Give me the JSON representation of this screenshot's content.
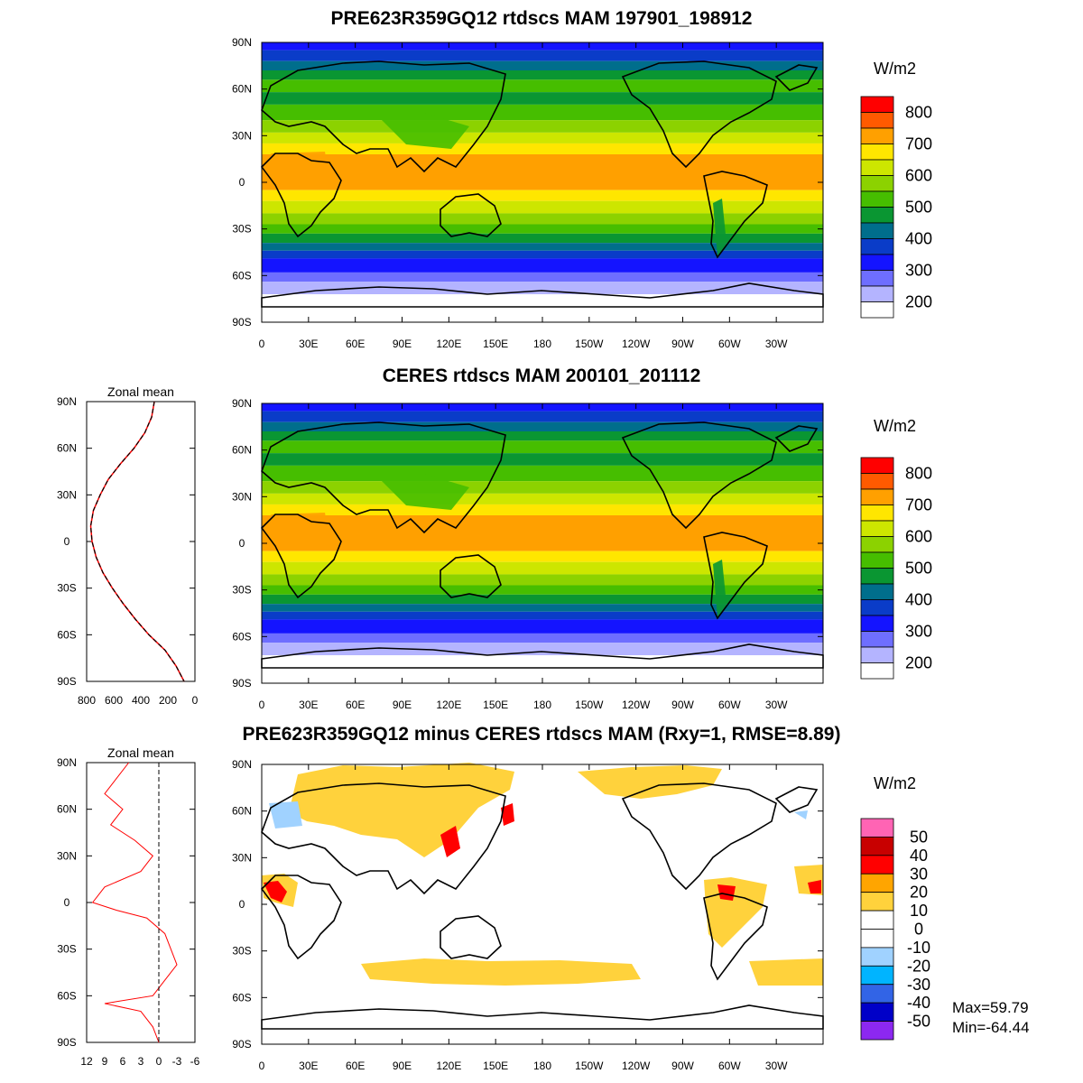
{
  "panels": [
    {
      "title": "PRE623R359GQ12 rtdscs MAM 197901_198912",
      "kind": "field"
    },
    {
      "title": "CERES rtdscs MAM 200101_201112",
      "kind": "field"
    },
    {
      "title": "PRE623R359GQ12 minus CERES rtdscs MAM (Rxy=1, RMSE=8.89)",
      "kind": "diff"
    }
  ],
  "lat_ticks": [
    "90N",
    "60N",
    "30N",
    "0",
    "30S",
    "60S",
    "90S"
  ],
  "lon_ticks": [
    "0",
    "30E",
    "60E",
    "90E",
    "120E",
    "150E",
    "180",
    "150W",
    "120W",
    "90W",
    "60W",
    "30W"
  ],
  "zonal_mean": {
    "title": "Zonal mean",
    "field_ticks": [
      "800",
      "600",
      "400",
      "200",
      "0"
    ],
    "diff_ticks": [
      "12",
      "9",
      "6",
      "3",
      "0",
      "-3",
      "-6"
    ]
  },
  "colorbar_field": {
    "unit": "W/m2",
    "labels": [
      "800",
      "700",
      "600",
      "500",
      "400",
      "300",
      "200"
    ],
    "colors": [
      "#ff0000",
      "#ff5a00",
      "#ffa000",
      "#ffe600",
      "#cde600",
      "#8cd200",
      "#46be00",
      "#0a9632",
      "#006e8c",
      "#0a3cc8",
      "#1414ff",
      "#6e6eff",
      "#b4b4ff",
      "#ffffff"
    ]
  },
  "colorbar_diff": {
    "unit": "W/m2",
    "labels": [
      "50",
      "40",
      "30",
      "20",
      "10",
      "0",
      "-10",
      "-20",
      "-30",
      "-40",
      "-50"
    ],
    "colors": [
      "#ff64b4",
      "#c80000",
      "#ff0000",
      "#ffa500",
      "#ffd23c",
      "#ffffff",
      "#ffffff",
      "#a0d2ff",
      "#00b4ff",
      "#3264e6",
      "#0000c8",
      "#8c28f0"
    ]
  },
  "stats": {
    "max": "Max=59.79",
    "min": "Min=-64.44"
  }
}
